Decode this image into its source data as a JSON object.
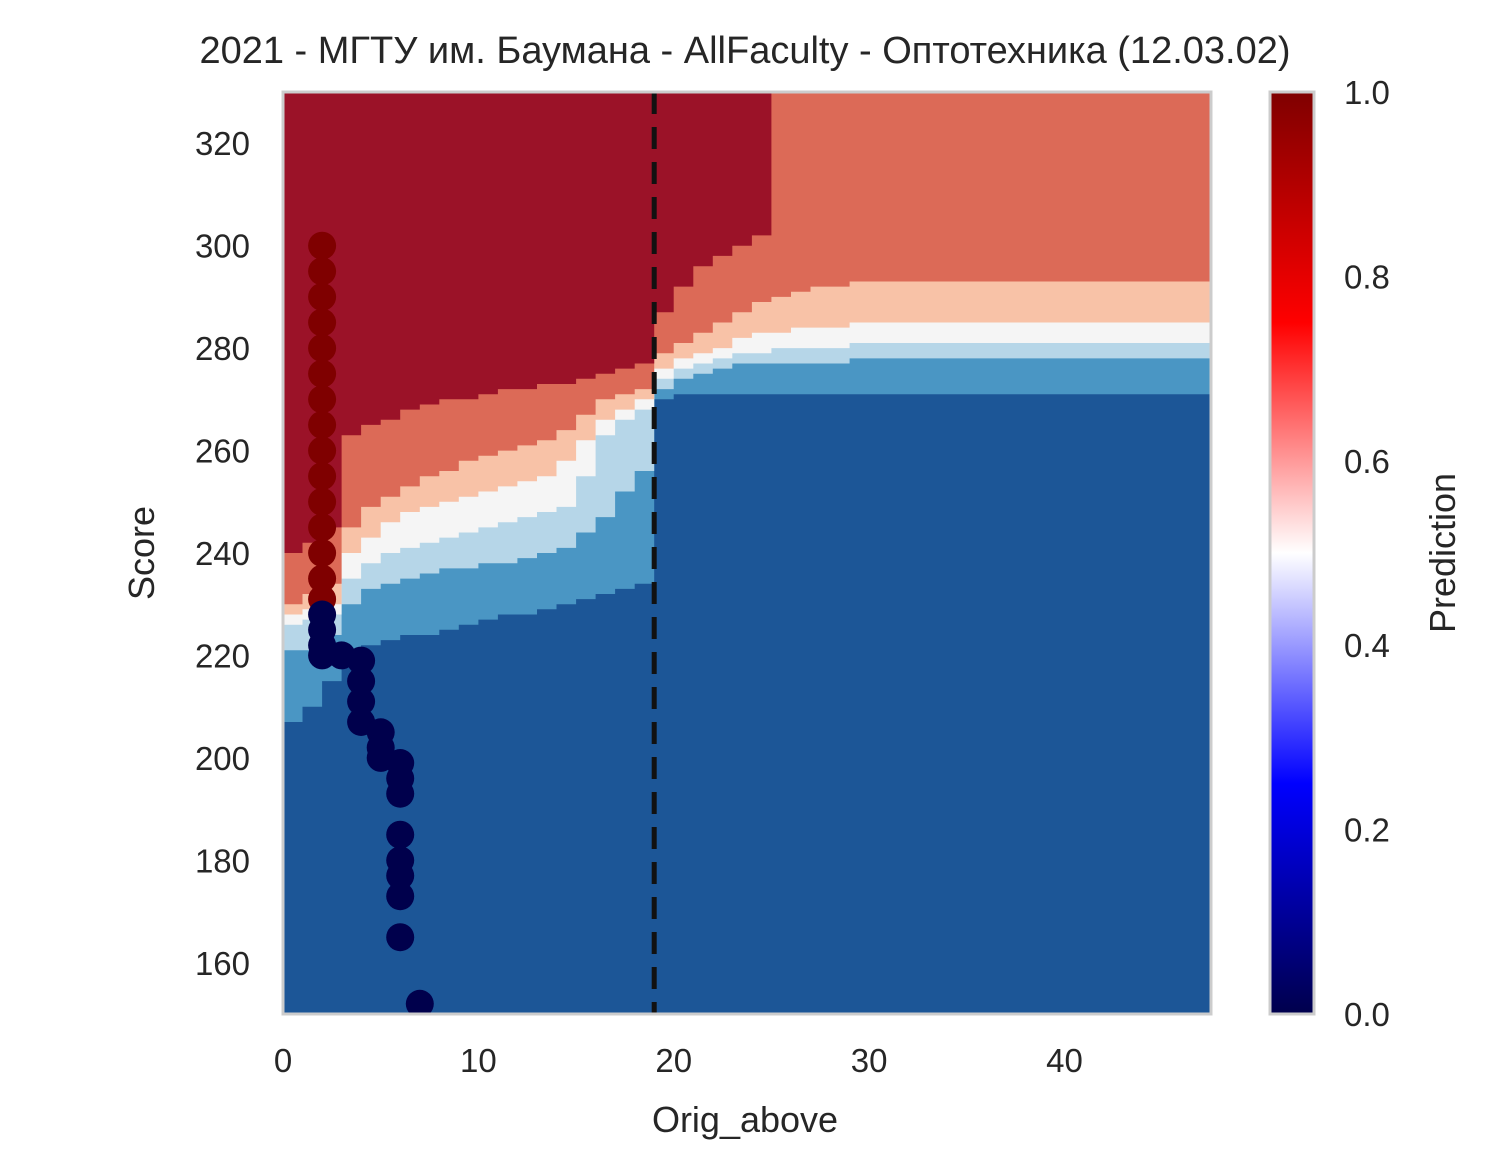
{
  "chart_data": {
    "type": "heatmap",
    "title": "2021 - МГТУ им. Баумана - AllFaculty - Оптотехника (12.03.02)",
    "xlabel": "Orig_above",
    "ylabel": "Score",
    "xlim": [
      0,
      47.5
    ],
    "ylim": [
      150,
      330
    ],
    "x_ticks": [
      0,
      10,
      20,
      30,
      40
    ],
    "y_ticks": [
      160,
      180,
      200,
      220,
      240,
      260,
      280,
      300,
      320
    ],
    "grid": false,
    "vline": {
      "x": 19,
      "style": "dashed",
      "color": "#111111"
    },
    "colorbar": {
      "label": "Prediction",
      "range": [
        0,
        1
      ],
      "ticks": [
        "0.0",
        "0.2",
        "0.4",
        "0.6",
        "0.8",
        "1.0"
      ],
      "colormap": "seismic"
    },
    "contour_levels": [
      {
        "range": [
          0.0,
          0.15
        ],
        "color": "#1c5697"
      },
      {
        "range": [
          0.15,
          0.3
        ],
        "color": "#4a96c4"
      },
      {
        "range": [
          0.3,
          0.45
        ],
        "color": "#b6d6e8"
      },
      {
        "range": [
          0.45,
          0.55
        ],
        "color": "#f5f5f5"
      },
      {
        "range": [
          0.55,
          0.7
        ],
        "color": "#f8c2a7"
      },
      {
        "range": [
          0.7,
          0.85
        ],
        "color": "#dc6a57"
      },
      {
        "range": [
          0.85,
          1.0
        ],
        "color": "#9b1228"
      }
    ],
    "contour_boundaries_score": {
      "x": [
        0,
        1,
        2,
        3,
        4,
        5,
        6,
        7,
        8,
        9,
        10,
        11,
        12,
        13,
        14,
        15,
        16,
        17,
        18,
        19,
        20,
        21,
        22,
        23,
        24,
        25,
        26,
        27,
        28,
        29,
        30,
        35,
        40,
        47.5
      ],
      "b1": [
        207,
        210,
        215,
        220,
        222,
        223,
        224,
        224,
        225,
        226,
        227,
        228,
        228,
        229,
        230,
        231,
        232,
        233,
        234,
        270,
        271,
        271,
        271,
        271,
        271,
        271,
        271,
        271,
        271,
        271,
        271,
        271,
        271,
        271
      ],
      "b2": [
        221,
        221,
        224,
        230,
        233,
        234,
        235,
        236,
        237,
        237,
        238,
        238,
        239,
        240,
        241,
        244,
        247,
        252,
        256,
        272,
        274,
        275,
        276,
        277,
        277,
        277,
        277,
        277,
        277,
        278,
        278,
        278,
        278,
        278
      ],
      "b3": [
        226,
        227,
        228,
        235,
        238,
        240,
        241,
        242,
        243,
        244,
        245,
        246,
        247,
        248,
        249,
        255,
        263,
        266,
        268,
        274,
        276,
        277,
        278,
        279,
        279,
        280,
        280,
        280,
        280,
        281,
        281,
        281,
        281,
        281
      ],
      "b4": [
        228,
        229,
        230,
        240,
        243,
        246,
        248,
        249,
        250,
        251,
        252,
        253,
        254,
        255,
        258,
        262,
        266,
        268,
        270,
        276,
        278,
        279,
        280,
        282,
        283,
        283,
        284,
        284,
        284,
        285,
        285,
        285,
        285,
        285
      ],
      "b5": [
        230,
        232,
        234,
        245,
        249,
        251,
        253,
        255,
        256,
        258,
        259,
        260,
        261,
        262,
        264,
        267,
        270,
        271,
        272,
        279,
        281,
        283,
        285,
        287,
        289,
        290,
        291,
        292,
        292,
        293,
        293,
        293,
        293,
        293
      ],
      "b6": [
        240,
        242,
        245,
        263,
        265,
        266,
        268,
        269,
        270,
        270,
        271,
        272,
        272,
        273,
        273,
        274,
        275,
        276,
        277,
        287,
        292,
        296,
        298,
        300,
        302,
        330,
        330,
        330,
        330,
        330,
        330,
        330,
        330,
        330
      ]
    },
    "series": [
      {
        "points": [
          {
            "x": 2,
            "y": 300
          },
          {
            "x": 2,
            "y": 295
          },
          {
            "x": 2,
            "y": 290
          },
          {
            "x": 2,
            "y": 285
          },
          {
            "x": 2,
            "y": 280
          },
          {
            "x": 2,
            "y": 275
          },
          {
            "x": 2,
            "y": 270
          },
          {
            "x": 2,
            "y": 265
          },
          {
            "x": 2,
            "y": 260
          },
          {
            "x": 2,
            "y": 255
          },
          {
            "x": 2,
            "y": 250
          },
          {
            "x": 2,
            "y": 245
          },
          {
            "x": 2,
            "y": 240
          },
          {
            "x": 2,
            "y": 235
          },
          {
            "x": 2,
            "y": 231
          },
          {
            "x": 2,
            "y": 228
          },
          {
            "x": 2,
            "y": 225
          },
          {
            "x": 2,
            "y": 222
          },
          {
            "x": 2,
            "y": 220
          },
          {
            "x": 3,
            "y": 220
          },
          {
            "x": 4,
            "y": 219
          },
          {
            "x": 4,
            "y": 215
          },
          {
            "x": 4,
            "y": 211
          },
          {
            "x": 4,
            "y": 207
          },
          {
            "x": 5,
            "y": 205
          },
          {
            "x": 5,
            "y": 202
          },
          {
            "x": 5,
            "y": 200
          },
          {
            "x": 6,
            "y": 199
          },
          {
            "x": 6,
            "y": 196
          },
          {
            "x": 6,
            "y": 193
          },
          {
            "x": 6,
            "y": 185
          },
          {
            "x": 6,
            "y": 180
          },
          {
            "x": 6,
            "y": 177
          },
          {
            "x": 6,
            "y": 173
          },
          {
            "x": 6,
            "y": 165
          },
          {
            "x": 7,
            "y": 152
          }
        ],
        "colors": [
          "#7f0000",
          "#7f0000",
          "#7f0000",
          "#7f0000",
          "#7f0000",
          "#7f0000",
          "#7f0000",
          "#7f0000",
          "#7f0000",
          "#7f0000",
          "#7f0000",
          "#7f0000",
          "#7f0000",
          "#7f0000",
          "#7f0000",
          "#00004c",
          "#00004c",
          "#00004c",
          "#00004c",
          "#00004c",
          "#00004c",
          "#00004c",
          "#00004c",
          "#00004c",
          "#00004c",
          "#00004c",
          "#00004c",
          "#00004c",
          "#00004c",
          "#00004c",
          "#00004c",
          "#00004c",
          "#00004c",
          "#00004c",
          "#00004c",
          "#00004c"
        ]
      }
    ]
  }
}
